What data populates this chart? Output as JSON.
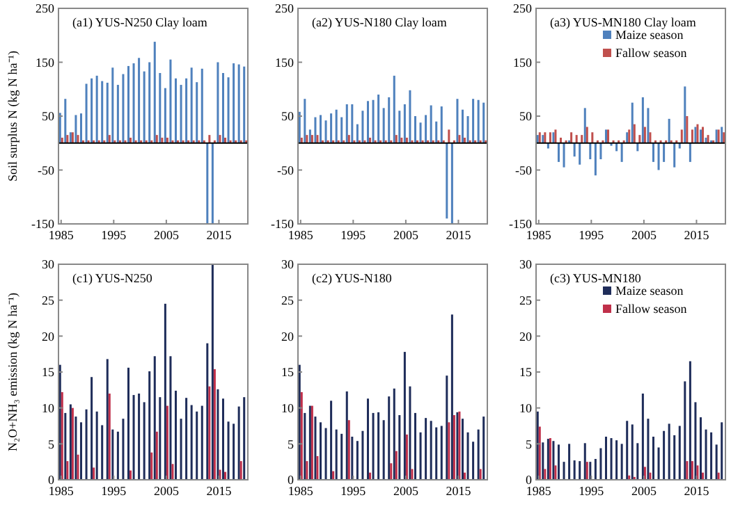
{
  "chart_data": [
    {
      "type": "bar",
      "title": "(a1) YUS-N250  Clay loam",
      "ylabel": "Soil surplus N (kg N ha⁻¹)",
      "x": [
        1985,
        1986,
        1987,
        1988,
        1989,
        1990,
        1991,
        1992,
        1993,
        1994,
        1995,
        1996,
        1997,
        1998,
        1999,
        2000,
        2001,
        2002,
        2003,
        2004,
        2005,
        2006,
        2007,
        2008,
        2009,
        2010,
        2011,
        2012,
        2013,
        2014,
        2015,
        2016,
        2017,
        2018,
        2019,
        2020
      ],
      "xlim": [
        1984.5,
        2020.5
      ],
      "xticks": [
        1985,
        1995,
        2005,
        2015
      ],
      "ylim": [
        -150,
        250
      ],
      "yticks": [
        -150,
        -50,
        50,
        150,
        250
      ],
      "grid": false,
      "legend": false,
      "series": [
        {
          "color": "#4f81bd",
          "values": [
            56,
            82,
            20,
            52,
            55,
            110,
            120,
            125,
            115,
            112,
            140,
            108,
            128,
            143,
            148,
            158,
            133,
            150,
            188,
            130,
            102,
            155,
            120,
            108,
            120,
            140,
            113,
            138,
            -150,
            -150,
            150,
            130,
            122,
            148,
            146,
            142
          ]
        },
        {
          "color": "#c0504d",
          "values": [
            10,
            15,
            20,
            15,
            5,
            5,
            5,
            5,
            5,
            15,
            5,
            5,
            5,
            10,
            5,
            5,
            5,
            5,
            15,
            10,
            10,
            5,
            5,
            5,
            5,
            5,
            5,
            5,
            15,
            5,
            15,
            10,
            5,
            5,
            5,
            5
          ]
        }
      ]
    },
    {
      "type": "bar",
      "title": "(a2) YUS-N180  Clay loam",
      "x": [
        1985,
        1986,
        1987,
        1988,
        1989,
        1990,
        1991,
        1992,
        1993,
        1994,
        1995,
        1996,
        1997,
        1998,
        1999,
        2000,
        2001,
        2002,
        2003,
        2004,
        2005,
        2006,
        2007,
        2008,
        2009,
        2010,
        2011,
        2012,
        2013,
        2014,
        2015,
        2016,
        2017,
        2018,
        2019,
        2020
      ],
      "xlim": [
        1984.5,
        2020.5
      ],
      "xticks": [
        1985,
        1995,
        2005,
        2015
      ],
      "ylim": [
        -150,
        250
      ],
      "yticks": [
        -150,
        -50,
        50,
        150,
        250
      ],
      "grid": false,
      "legend": false,
      "series": [
        {
          "color": "#4f81bd",
          "values": [
            58,
            82,
            25,
            48,
            52,
            42,
            55,
            62,
            48,
            72,
            72,
            35,
            60,
            78,
            80,
            90,
            65,
            85,
            125,
            60,
            72,
            98,
            50,
            38,
            52,
            70,
            40,
            68,
            -140,
            -150,
            82,
            62,
            50,
            82,
            80,
            75
          ]
        },
        {
          "color": "#c0504d",
          "values": [
            10,
            15,
            15,
            15,
            5,
            5,
            5,
            5,
            5,
            15,
            5,
            5,
            5,
            10,
            5,
            5,
            5,
            5,
            15,
            10,
            10,
            5,
            5,
            5,
            5,
            5,
            5,
            5,
            25,
            5,
            15,
            10,
            5,
            5,
            5,
            5
          ]
        }
      ]
    },
    {
      "type": "bar",
      "title": "(a3) YUS-MN180  Clay loam",
      "x": [
        1985,
        1986,
        1987,
        1988,
        1989,
        1990,
        1991,
        1992,
        1993,
        1994,
        1995,
        1996,
        1997,
        1998,
        1999,
        2000,
        2001,
        2002,
        2003,
        2004,
        2005,
        2006,
        2007,
        2008,
        2009,
        2010,
        2011,
        2012,
        2013,
        2014,
        2015,
        2016,
        2017,
        2018,
        2019,
        2020
      ],
      "xlim": [
        1984.5,
        2020.5
      ],
      "xticks": [
        1985,
        1995,
        2005,
        2015
      ],
      "ylim": [
        -150,
        250
      ],
      "yticks": [
        -150,
        -50,
        50,
        150,
        250
      ],
      "grid": false,
      "legend": "top right",
      "series": [
        {
          "name": "Maize season",
          "color": "#4f81bd",
          "values": [
            15,
            15,
            -10,
            20,
            -35,
            -45,
            5,
            -25,
            -40,
            65,
            -30,
            -60,
            -30,
            25,
            -5,
            -15,
            -35,
            20,
            75,
            -15,
            85,
            65,
            -35,
            -50,
            -35,
            45,
            -45,
            -10,
            105,
            -35,
            30,
            25,
            10,
            5,
            25,
            30
          ]
        },
        {
          "name": "Fallow season",
          "color": "#c0504d",
          "values": [
            20,
            20,
            20,
            25,
            10,
            5,
            20,
            15,
            15,
            30,
            20,
            5,
            5,
            25,
            5,
            5,
            5,
            25,
            35,
            15,
            30,
            20,
            5,
            5,
            5,
            5,
            5,
            25,
            50,
            25,
            35,
            30,
            15,
            5,
            25,
            20
          ]
        }
      ]
    },
    {
      "type": "bar",
      "title": "(c1) YUS-N250",
      "ylabel": "N₂O+NH₃ emission (kg N ha⁻¹)",
      "x": [
        1985,
        1986,
        1987,
        1988,
        1989,
        1990,
        1991,
        1992,
        1993,
        1994,
        1995,
        1996,
        1997,
        1998,
        1999,
        2000,
        2001,
        2002,
        2003,
        2004,
        2005,
        2006,
        2007,
        2008,
        2009,
        2010,
        2011,
        2012,
        2013,
        2014,
        2015,
        2016,
        2017,
        2018,
        2019,
        2020
      ],
      "xlim": [
        1984.5,
        2020.5
      ],
      "xticks": [
        1985,
        1995,
        2005,
        2015
      ],
      "ylim": [
        0,
        30
      ],
      "yticks": [
        0,
        5,
        10,
        15,
        20,
        25,
        30
      ],
      "grid": false,
      "legend": false,
      "series": [
        {
          "color": "#1f2d5a",
          "values": [
            16,
            9.3,
            10.5,
            8.8,
            8,
            9.8,
            14.3,
            9.5,
            7.6,
            16.8,
            7,
            6.7,
            8.5,
            15.6,
            11.8,
            12,
            10.8,
            15.1,
            17.2,
            11.5,
            24.5,
            17.2,
            12.4,
            8.5,
            11.4,
            10.4,
            9.5,
            10.3,
            19,
            30,
            12.6,
            11.3,
            8.1,
            7.8,
            10.2,
            11.5
          ]
        },
        {
          "color": "#c0304a",
          "values": [
            12.2,
            2.6,
            10,
            3.5,
            0,
            0,
            1.7,
            0,
            0,
            12,
            0,
            0,
            0,
            1.3,
            0,
            0,
            0,
            3.8,
            6.7,
            0,
            10.3,
            2.2,
            0,
            0,
            0,
            0,
            0,
            0,
            13,
            15.4,
            1.4,
            1.1,
            0,
            0,
            2.6,
            0
          ]
        }
      ]
    },
    {
      "type": "bar",
      "title": "(c2) YUS-N180",
      "x": [
        1985,
        1986,
        1987,
        1988,
        1989,
        1990,
        1991,
        1992,
        1993,
        1994,
        1995,
        1996,
        1997,
        1998,
        1999,
        2000,
        2001,
        2002,
        2003,
        2004,
        2005,
        2006,
        2007,
        2008,
        2009,
        2010,
        2011,
        2012,
        2013,
        2014,
        2015,
        2016,
        2017,
        2018,
        2019,
        2020
      ],
      "xlim": [
        1984.5,
        2020.5
      ],
      "xticks": [
        1985,
        1995,
        2005,
        2015
      ],
      "ylim": [
        0,
        30
      ],
      "yticks": [
        0,
        5,
        10,
        15,
        20,
        25,
        30
      ],
      "grid": false,
      "legend": false,
      "series": [
        {
          "color": "#1f2d5a",
          "values": [
            16,
            9.3,
            10.3,
            8.8,
            8,
            7.2,
            11,
            7,
            6.4,
            12.3,
            6,
            5.4,
            6.8,
            11.3,
            9.3,
            9.4,
            8.3,
            11.6,
            12.7,
            9,
            17.8,
            13,
            9.3,
            6.6,
            8.6,
            8.2,
            7.3,
            7.5,
            14.5,
            23,
            9.4,
            8.5,
            6.6,
            5.3,
            7,
            8.8
          ]
        },
        {
          "color": "#c0304a",
          "values": [
            12.2,
            2.6,
            10.3,
            3.3,
            0,
            0,
            1.2,
            0,
            0,
            8.3,
            0,
            0,
            0,
            1,
            0,
            0,
            0,
            2.3,
            4,
            0,
            6.3,
            1.5,
            0,
            0,
            0,
            0,
            0,
            0,
            8,
            9,
            9.5,
            1,
            0,
            0,
            1.5,
            0
          ]
        }
      ]
    },
    {
      "type": "bar",
      "title": "(c3) YUS-MN180",
      "x": [
        1985,
        1986,
        1987,
        1988,
        1989,
        1990,
        1991,
        1992,
        1993,
        1994,
        1995,
        1996,
        1997,
        1998,
        1999,
        2000,
        2001,
        2002,
        2003,
        2004,
        2005,
        2006,
        2007,
        2008,
        2009,
        2010,
        2011,
        2012,
        2013,
        2014,
        2015,
        2016,
        2017,
        2018,
        2019,
        2020
      ],
      "xlim": [
        1984.5,
        2020.5
      ],
      "xticks": [
        1985,
        1995,
        2005,
        2015
      ],
      "ylim": [
        0,
        30
      ],
      "yticks": [
        0,
        5,
        10,
        15,
        20,
        25,
        30
      ],
      "grid": false,
      "legend": "top right",
      "series": [
        {
          "name": "Maize season",
          "color": "#1f2d5a",
          "values": [
            9.5,
            5.2,
            5.7,
            5.4,
            4.9,
            2.5,
            5,
            2.7,
            2.6,
            5.1,
            2.5,
            2.9,
            4.4,
            6,
            5.8,
            5.5,
            5,
            8.2,
            7.7,
            5.1,
            12,
            8.5,
            6,
            4.5,
            6.8,
            7.8,
            6.2,
            7.5,
            13.7,
            16.5,
            10.8,
            8.7,
            7,
            6.6,
            4.9,
            8
          ]
        },
        {
          "name": "Fallow season",
          "color": "#c0304a",
          "values": [
            7.4,
            1.5,
            5.8,
            2,
            0,
            0,
            0,
            0,
            0,
            2.5,
            0,
            0,
            0,
            0,
            0,
            0,
            0,
            0.6,
            0.4,
            0,
            1.8,
            1,
            0,
            0,
            0,
            0,
            0,
            0,
            2.6,
            2.6,
            2,
            1,
            0,
            0,
            1,
            0
          ]
        }
      ]
    }
  ]
}
